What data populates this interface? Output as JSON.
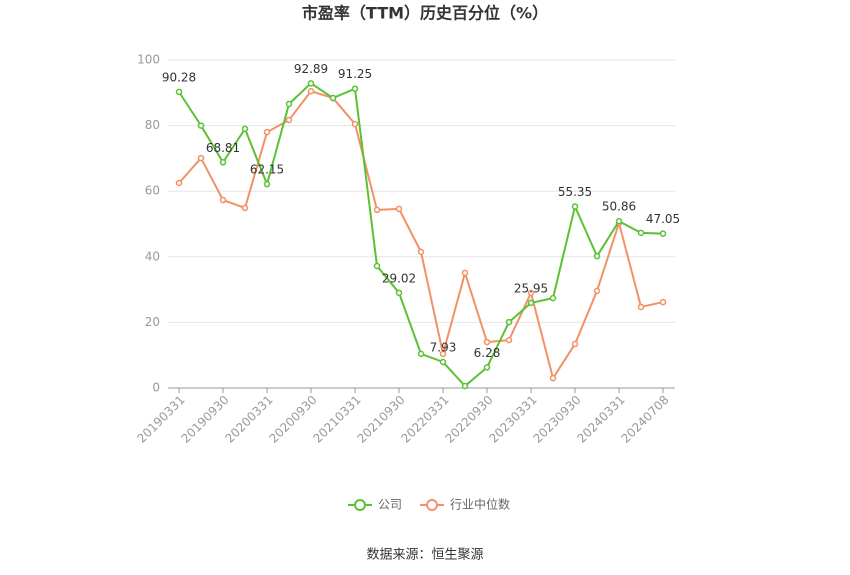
{
  "chart_data": {
    "type": "line",
    "title": "市盈率（TTM）历史百分位（%）",
    "source": "数据来源：恒生聚源",
    "categories": [
      "20190331",
      null,
      "20190930",
      null,
      "20200331",
      null,
      "20200930",
      null,
      "20210331",
      null,
      "20210930",
      null,
      "20220331",
      null,
      "20220930",
      null,
      "20230331",
      null,
      "20230930",
      null,
      "20240331",
      null,
      "20240708"
    ],
    "series": [
      {
        "name": "公司",
        "color": "#5cc132",
        "values": [
          90.28,
          80,
          68.81,
          79,
          62.15,
          86.6,
          92.89,
          88.4,
          91.25,
          37.2,
          29.02,
          10.4,
          7.93,
          0.6,
          6.28,
          20.1,
          25.95,
          27.4,
          55.35,
          40.2,
          50.86,
          47.3,
          47.05
        ]
      },
      {
        "name": "行业中位数",
        "color": "#f29066",
        "values": [
          62.5,
          70.1,
          57.3,
          54.9,
          78,
          81.7,
          90.5,
          88.4,
          80.5,
          54.3,
          54.6,
          41.5,
          10.4,
          35.1,
          14,
          14.6,
          29,
          3,
          13.4,
          29.6,
          50.3,
          24.7,
          26.2
        ]
      }
    ],
    "ylim": [
      0,
      100
    ],
    "yticks": [
      0,
      20,
      40,
      60,
      80,
      100
    ],
    "grid": true
  }
}
